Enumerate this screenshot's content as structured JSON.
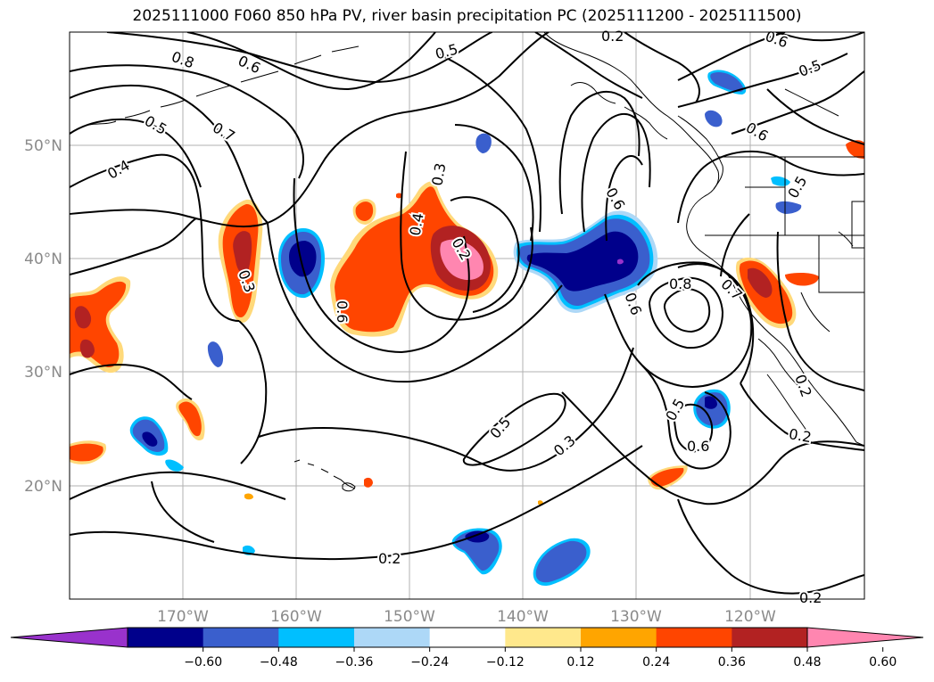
{
  "title": "2025111000 F060 850 hPa PV, river basin precipitation PC (2025111200 - 2025111500)",
  "lon_labels": [
    "170°W",
    "160°W",
    "150°W",
    "140°W",
    "130°W",
    "120°W"
  ],
  "lat_labels": [
    "50°N",
    "40°N",
    "30°N",
    "20°N"
  ],
  "contour_labels": [
    "0.8",
    "0.6",
    "0.5",
    "0.7",
    "0.4",
    "0.3",
    "0.2",
    "0.4",
    "0.3",
    "0.2",
    "0.6",
    "0.5",
    "0.6",
    "0.6",
    "0.5",
    "0.5",
    "0.6",
    "0.8",
    "0.7",
    "0.6",
    "0.5",
    "0.6",
    "0.5",
    "0.3",
    "0.2",
    "0.2",
    "0.2",
    "0.2"
  ],
  "colorbar": {
    "ticks": [
      "−0.60",
      "−0.48",
      "−0.36",
      "−0.24",
      "−0.12",
      "0.12",
      "0.24",
      "0.36",
      "0.48",
      "0.60"
    ],
    "colors": [
      "#9932cc",
      "#00008b",
      "#3a5fcd",
      "#00bfff",
      "#add8f7",
      "#ffffff",
      "#ffe88c",
      "#ffa500",
      "#ff4500",
      "#b22222",
      "#ff86b0"
    ]
  }
}
